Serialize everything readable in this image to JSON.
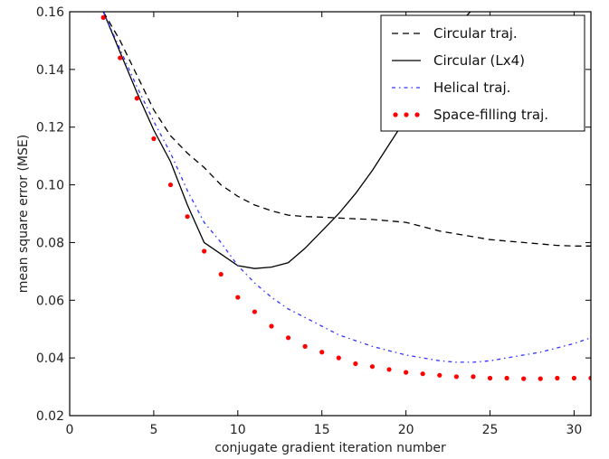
{
  "chart_data": {
    "type": "line",
    "xlabel": "conjugate gradient iteration number",
    "ylabel": "mean square error (MSE)",
    "xlim": [
      0,
      31
    ],
    "ylim": [
      0.02,
      0.16
    ],
    "xticks": [
      0,
      5,
      10,
      15,
      20,
      25,
      30
    ],
    "yticks": [
      0.02,
      0.04,
      0.06,
      0.08,
      0.1,
      0.12,
      0.14,
      0.16
    ],
    "ytick_labels": [
      "0.02",
      "0.04",
      "0.06",
      "0.08",
      "0.10",
      "0.12",
      "0.14",
      "0.16"
    ],
    "grid": false,
    "legend_position": "top-right",
    "series": [
      {
        "name": "Circular traj.",
        "style": "dashed",
        "color": "#000000",
        "x": [
          2,
          3,
          4,
          5,
          6,
          7,
          8,
          9,
          10,
          11,
          12,
          13,
          14,
          15,
          16,
          17,
          18,
          19,
          20,
          21,
          22,
          23,
          24,
          25,
          26,
          27,
          28,
          29,
          30,
          31
        ],
        "y": [
          0.16,
          0.15,
          0.138,
          0.126,
          0.117,
          0.111,
          0.106,
          0.1,
          0.096,
          0.093,
          0.091,
          0.0895,
          0.089,
          0.0888,
          0.0885,
          0.0882,
          0.088,
          0.0875,
          0.087,
          0.0855,
          0.084,
          0.083,
          0.082,
          0.081,
          0.0805,
          0.08,
          0.0795,
          0.079,
          0.0788,
          0.0788
        ]
      },
      {
        "name": "Circular (Lx4)",
        "style": "solid",
        "color": "#000000",
        "x": [
          2,
          3,
          4,
          5,
          6,
          7,
          8,
          9,
          10,
          11,
          12,
          13,
          14,
          15,
          16,
          17,
          18,
          19,
          20,
          21,
          22,
          23,
          24
        ],
        "y": [
          0.16,
          0.146,
          0.132,
          0.119,
          0.108,
          0.093,
          0.08,
          0.076,
          0.072,
          0.071,
          0.0715,
          0.073,
          0.078,
          0.084,
          0.09,
          0.097,
          0.105,
          0.114,
          0.123,
          0.134,
          0.145,
          0.155,
          0.161
        ]
      },
      {
        "name": "Helical traj.",
        "style": "dashdot",
        "color": "#3333ff",
        "x": [
          2,
          3,
          4,
          5,
          6,
          7,
          8,
          9,
          10,
          11,
          12,
          13,
          14,
          15,
          16,
          17,
          18,
          19,
          20,
          21,
          22,
          23,
          24,
          25,
          26,
          27,
          28,
          29,
          30,
          31
        ],
        "y": [
          0.16,
          0.147,
          0.134,
          0.122,
          0.111,
          0.098,
          0.087,
          0.08,
          0.072,
          0.066,
          0.061,
          0.057,
          0.054,
          0.051,
          0.048,
          0.046,
          0.044,
          0.0425,
          0.041,
          0.04,
          0.039,
          0.0385,
          0.0385,
          0.039,
          0.04,
          0.041,
          0.042,
          0.0435,
          0.045,
          0.047
        ]
      },
      {
        "name": "Space-filling traj.",
        "style": "dotted",
        "color": "#ff0000",
        "x": [
          2,
          3,
          4,
          5,
          6,
          7,
          8,
          9,
          10,
          11,
          12,
          13,
          14,
          15,
          16,
          17,
          18,
          19,
          20,
          21,
          22,
          23,
          24,
          25,
          26,
          27,
          28,
          29,
          30,
          31
        ],
        "y": [
          0.158,
          0.144,
          0.13,
          0.116,
          0.1,
          0.089,
          0.077,
          0.069,
          0.061,
          0.056,
          0.051,
          0.047,
          0.044,
          0.042,
          0.04,
          0.038,
          0.037,
          0.036,
          0.035,
          0.0345,
          0.034,
          0.0335,
          0.0335,
          0.033,
          0.033,
          0.0328,
          0.0328,
          0.033,
          0.033,
          0.033
        ]
      }
    ]
  }
}
